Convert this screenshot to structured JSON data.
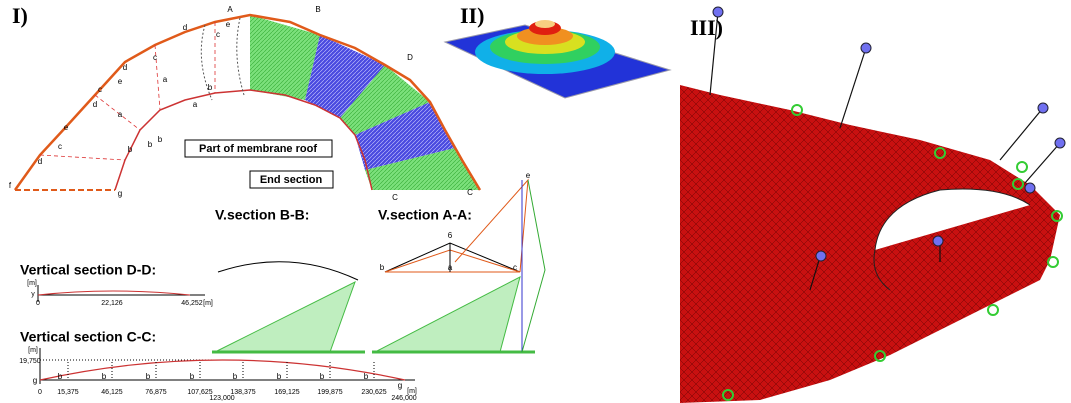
{
  "panel_labels": [
    "I)",
    "II)",
    "III)"
  ],
  "plan": {
    "callouts": [
      "Part of membrane roof",
      "End section"
    ],
    "letters": [
      "f",
      "g",
      "d",
      "c",
      "e",
      "a",
      "b",
      "d",
      "c",
      "e",
      "a",
      "b",
      "d",
      "c",
      "a",
      "b",
      "d",
      "A",
      "e",
      "c",
      "b",
      "B",
      "D",
      "C",
      "C"
    ]
  },
  "sections": {
    "bb": {
      "title": "V.section B-B:"
    },
    "aa": {
      "title": "V.section A-A:",
      "letters": [
        "b",
        "a",
        "c",
        "6",
        "e"
      ]
    },
    "dd": {
      "title": "Vertical section D-D:",
      "unit": "[m]",
      "y_label": "y",
      "x_labels": [
        "0",
        "22,126",
        "46,252"
      ],
      "x_unit": "[m]"
    },
    "cc": {
      "title": "Vertical section C-C:",
      "unit": "[m]",
      "height": "19,750",
      "end_letters": [
        "g",
        "g"
      ],
      "x_labels": [
        "0",
        "15,375",
        "46,125",
        "76,875",
        "107,625",
        "138,375",
        "169,125",
        "199,875",
        "230,625",
        "246,000"
      ],
      "mid_label": "123,000",
      "x_unit": "[m]",
      "b_letters": [
        "b",
        "b",
        "b",
        "b",
        "b",
        "b",
        "b",
        "b"
      ]
    }
  }
}
